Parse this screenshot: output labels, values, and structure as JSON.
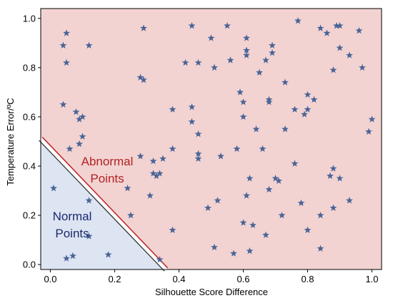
{
  "chart_data": {
    "type": "scatter",
    "xlabel": "Silhouette Score Difference",
    "ylabel": "Temperature Error/ºC",
    "xlim": [
      -0.03,
      1.03
    ],
    "ylim": [
      -0.02,
      1.04
    ],
    "xticks": [
      "0.0",
      "0.2",
      "0.4",
      "0.6",
      "0.8",
      "1.0"
    ],
    "yticks": [
      "0.0",
      "0.2",
      "0.4",
      "0.6",
      "0.8",
      "1.0"
    ],
    "grid": false,
    "marker": "star",
    "colors": {
      "marker": "#4a6496",
      "normal_region": "#dde4f2",
      "abnormal_region": "#f2d3d2",
      "boundary_red": "#c0282a",
      "boundary_dark": "#333333",
      "normal_text": "#1a2a6e",
      "abnormal_text": "#b22222"
    },
    "regions": [
      {
        "label_line1": "Normal",
        "label_line2": "Points"
      },
      {
        "label_line1": "Abnormal",
        "label_line2": "Points"
      }
    ],
    "boundary": {
      "x_at_y0": 0.345,
      "y_at_x0": 0.47
    },
    "points": [
      [
        0.01,
        0.31
      ],
      [
        0.05,
        0.025
      ],
      [
        0.07,
        0.035
      ],
      [
        0.18,
        0.04
      ],
      [
        0.12,
        0.115
      ],
      [
        0.04,
        0.89
      ],
      [
        0.05,
        0.94
      ],
      [
        0.05,
        0.82
      ],
      [
        0.12,
        0.89
      ],
      [
        0.04,
        0.65
      ],
      [
        0.08,
        0.62
      ],
      [
        0.09,
        0.59
      ],
      [
        0.1,
        0.6
      ],
      [
        0.1,
        0.52
      ],
      [
        0.09,
        0.49
      ],
      [
        0.06,
        0.47
      ],
      [
        0.12,
        0.26
      ],
      [
        0.24,
        0.31
      ],
      [
        0.25,
        0.2
      ],
      [
        0.28,
        0.44
      ],
      [
        0.28,
        0.76
      ],
      [
        0.29,
        0.75
      ],
      [
        0.29,
        0.96
      ],
      [
        0.31,
        0.28
      ],
      [
        0.32,
        0.37
      ],
      [
        0.32,
        0.42
      ],
      [
        0.33,
        0.36
      ],
      [
        0.34,
        0.37
      ],
      [
        0.35,
        0.43
      ],
      [
        0.34,
        0.02
      ],
      [
        0.38,
        0.47
      ],
      [
        0.38,
        0.14
      ],
      [
        0.38,
        0.63
      ],
      [
        0.42,
        0.82
      ],
      [
        0.44,
        0.97
      ],
      [
        0.44,
        0.58
      ],
      [
        0.44,
        0.64
      ],
      [
        0.46,
        0.82
      ],
      [
        0.46,
        0.53
      ],
      [
        0.46,
        0.45
      ],
      [
        0.46,
        0.43
      ],
      [
        0.49,
        0.23
      ],
      [
        0.5,
        0.92
      ],
      [
        0.51,
        0.8
      ],
      [
        0.51,
        0.07
      ],
      [
        0.52,
        0.26
      ],
      [
        0.53,
        0.44
      ],
      [
        0.55,
        0.97
      ],
      [
        0.56,
        0.83
      ],
      [
        0.57,
        0.045
      ],
      [
        0.58,
        0.47
      ],
      [
        0.59,
        0.7
      ],
      [
        0.6,
        0.66
      ],
      [
        0.6,
        0.6
      ],
      [
        0.6,
        0.17
      ],
      [
        0.61,
        0.92
      ],
      [
        0.61,
        0.87
      ],
      [
        0.61,
        0.85
      ],
      [
        0.61,
        0.28
      ],
      [
        0.62,
        0.35
      ],
      [
        0.62,
        0.055
      ],
      [
        0.63,
        0.16
      ],
      [
        0.64,
        0.55
      ],
      [
        0.65,
        0.78
      ],
      [
        0.66,
        0.47
      ],
      [
        0.67,
        0.83
      ],
      [
        0.67,
        0.12
      ],
      [
        0.68,
        0.67
      ],
      [
        0.68,
        0.66
      ],
      [
        0.68,
        0.305
      ],
      [
        0.69,
        0.89
      ],
      [
        0.69,
        0.86
      ],
      [
        0.7,
        0.35
      ],
      [
        0.71,
        0.34
      ],
      [
        0.72,
        0.2
      ],
      [
        0.73,
        0.55
      ],
      [
        0.73,
        0.74
      ],
      [
        0.76,
        0.63
      ],
      [
        0.76,
        0.41
      ],
      [
        0.77,
        0.99
      ],
      [
        0.78,
        0.25
      ],
      [
        0.79,
        0.61
      ],
      [
        0.8,
        0.63
      ],
      [
        0.8,
        0.69
      ],
      [
        0.8,
        0.14
      ],
      [
        0.82,
        0.67
      ],
      [
        0.84,
        0.96
      ],
      [
        0.84,
        0.2
      ],
      [
        0.84,
        0.065
      ],
      [
        0.86,
        0.94
      ],
      [
        0.87,
        0.36
      ],
      [
        0.88,
        0.39
      ],
      [
        0.88,
        0.79
      ],
      [
        0.88,
        0.23
      ],
      [
        0.89,
        0.97
      ],
      [
        0.9,
        0.97
      ],
      [
        0.9,
        0.88
      ],
      [
        0.9,
        0.35
      ],
      [
        0.93,
        0.85
      ],
      [
        0.93,
        0.26
      ],
      [
        0.96,
        0.95
      ],
      [
        0.97,
        0.8
      ],
      [
        0.99,
        0.54
      ],
      [
        1.0,
        0.59
      ]
    ]
  }
}
